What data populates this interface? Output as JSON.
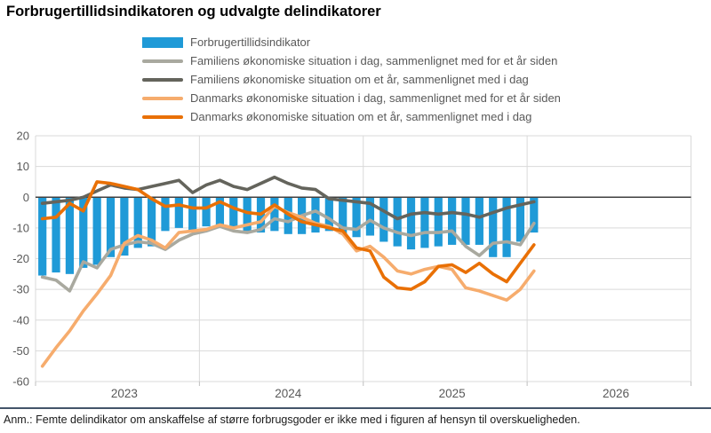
{
  "title": "Forbrugertillidsindikatoren og udvalgte delindikatorer",
  "footnote": "Anm.: Femte delindikator om anskaffelse af større forbrugsgoder er ikke med i figuren af hensyn til overskueligheden.",
  "legend": [
    {
      "label": "Forbrugertillidsindikator",
      "color": "#1F9AD7",
      "type": "bar"
    },
    {
      "label": "Familiens økonomiske situation i dag, sammenlignet med for et år siden",
      "color": "#A9A99F",
      "type": "line"
    },
    {
      "label": "Familiens økonomiske situation om et år, sammenlignet med i dag",
      "color": "#64645C",
      "type": "line"
    },
    {
      "label": "Danmarks økonomiske situation i dag, sammenlignet med for et år siden",
      "color": "#F6AC6D",
      "type": "line"
    },
    {
      "label": "Danmarks økonomiske situation om et år, sammenlignet med i dag",
      "color": "#E97005",
      "type": "line"
    }
  ],
  "colors": {
    "grid": "#D9D9D9",
    "zero_line": "#404040",
    "axis_text": "#595959",
    "tick": "#BFBFBF",
    "foot_rule": "#44546A"
  },
  "chart_data": {
    "type": "combo-bar-line",
    "title": "Forbrugertillidsindikatoren og udvalgte delindikatorer",
    "ylim": [
      -60,
      20
    ],
    "y_ticks": [
      20,
      10,
      0,
      -10,
      -20,
      -30,
      -40,
      -50,
      -60
    ],
    "x_year_labels": [
      "2023",
      "2024",
      "2025",
      "2026"
    ],
    "x_axis_span_months": 48,
    "grid": true,
    "legend_position": "top",
    "x": [
      "2023-01",
      "2023-02",
      "2023-03",
      "2023-04",
      "2023-05",
      "2023-06",
      "2023-07",
      "2023-08",
      "2023-09",
      "2023-10",
      "2023-11",
      "2023-12",
      "2024-01",
      "2024-02",
      "2024-03",
      "2024-04",
      "2024-05",
      "2024-06",
      "2024-07",
      "2024-08",
      "2024-09",
      "2024-10",
      "2024-11",
      "2024-12",
      "2025-01",
      "2025-02",
      "2025-03",
      "2025-04",
      "2025-05",
      "2025-06",
      "2025-07",
      "2025-08",
      "2025-09",
      "2025-10",
      "2025-11",
      "2025-12",
      "2026-01"
    ],
    "bar_series": {
      "name": "Forbrugertillidsindikator",
      "color": "#1F9AD7",
      "values": [
        -25.5,
        -24.5,
        -25,
        -23,
        -22,
        -19.5,
        -19,
        -16.5,
        -16,
        -11,
        -10,
        -11,
        -9.5,
        -9,
        -10,
        -11,
        -11.5,
        -11,
        -12,
        -12,
        -11.5,
        -11,
        -12,
        -13,
        -12.5,
        -14.5,
        -16,
        -17,
        -16.5,
        -16,
        -15.5,
        -15.5,
        -15.5,
        -19.5,
        -19.5,
        -14.5,
        -11.5
      ]
    },
    "line_series": [
      {
        "name": "Familiens økonomiske situation i dag, sammenlignet med for et år siden",
        "color": "#A9A99F",
        "values": [
          -26,
          -27,
          -30.5,
          -21,
          -23,
          -17,
          -15.5,
          -14.5,
          -15,
          -17,
          -14,
          -12,
          -11,
          -9.5,
          -11,
          -11.5,
          -10.5,
          -7,
          -8,
          -6,
          -4.5,
          -7,
          -10,
          -10.5,
          -7.5,
          -10,
          -11.5,
          -12.5,
          -11.5,
          -11.5,
          -11,
          -16,
          -19,
          -15,
          -14.5,
          -15.5,
          -8.5
        ]
      },
      {
        "name": "Familiens økonomiske situation om et år, sammenlignet med i dag",
        "color": "#64645C",
        "values": [
          -2,
          -1.5,
          -1,
          0,
          2,
          4,
          3,
          2.5,
          3.5,
          4.5,
          5.5,
          1.5,
          4,
          5.5,
          3.5,
          2.5,
          4.5,
          6.5,
          4.5,
          3,
          2.5,
          -0.5,
          -1,
          -1.5,
          -2,
          -4.5,
          -7,
          -5.5,
          -5,
          -5.5,
          -5,
          -5.5,
          -6.5,
          -5,
          -3.5,
          -2.5,
          -1.5
        ]
      },
      {
        "name": "Danmarks økonomiske situation i dag, sammenlignet med for et år siden",
        "color": "#F6AC6D",
        "values": [
          -55,
          -49,
          -43.5,
          -37,
          -31.5,
          -25.5,
          -15,
          -12.5,
          -14,
          -16.5,
          -11.5,
          -11,
          -10.5,
          -9,
          -10,
          -9,
          -8,
          -3,
          -5,
          -6.5,
          -8.5,
          -9.5,
          -12,
          -17.5,
          -16,
          -19.5,
          -24,
          -25,
          -23.5,
          -22.5,
          -23.5,
          -29.5,
          -30.5,
          -32,
          -33.5,
          -30,
          -24
        ]
      },
      {
        "name": "Danmarks økonomiske situation om et år, sammenlignet med i dag",
        "color": "#E97005",
        "values": [
          -7,
          -6.5,
          -2,
          -4.5,
          5,
          4.5,
          3.5,
          2.5,
          -0.5,
          -3,
          -2.5,
          -3.5,
          -3.5,
          -1.5,
          -3.5,
          -5,
          -5.5,
          -2.5,
          -5.5,
          -8,
          -9,
          -10,
          -11,
          -16.5,
          -17.5,
          -26,
          -29.5,
          -30,
          -27.5,
          -22.5,
          -22,
          -24.5,
          -21.5,
          -25,
          -27.5,
          -21.5,
          -15.5
        ]
      }
    ]
  }
}
